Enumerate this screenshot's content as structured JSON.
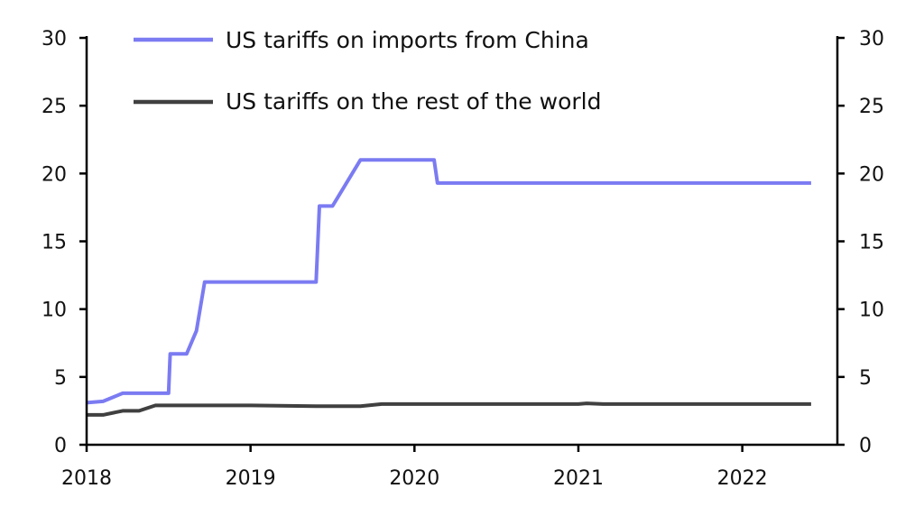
{
  "chart_data": {
    "type": "line",
    "title": "",
    "xlabel": "",
    "ylabel": "",
    "ylim": [
      0,
      30
    ],
    "y2lim": [
      0,
      30
    ],
    "y_ticks": [
      "0",
      "5",
      "10",
      "15",
      "20",
      "25",
      "30"
    ],
    "x_ticks": [
      "2018",
      "2019",
      "2020",
      "2021",
      "2022"
    ],
    "x_tick_values": [
      2018,
      2019,
      2020,
      2021,
      2022
    ],
    "grid": false,
    "legend_position": "top-left",
    "series": [
      {
        "name": "US tariffs on imports from China",
        "color": "#7b7bf2",
        "points": [
          [
            2018.0,
            3.1
          ],
          [
            2018.1,
            3.2
          ],
          [
            2018.22,
            3.8
          ],
          [
            2018.5,
            3.8
          ],
          [
            2018.51,
            6.7
          ],
          [
            2018.61,
            6.7
          ],
          [
            2018.67,
            8.4
          ],
          [
            2018.72,
            12.0
          ],
          [
            2019.4,
            12.0
          ],
          [
            2019.42,
            17.6
          ],
          [
            2019.5,
            17.6
          ],
          [
            2019.67,
            21.0
          ],
          [
            2020.12,
            21.0
          ],
          [
            2020.14,
            19.3
          ],
          [
            2022.42,
            19.3
          ]
        ]
      },
      {
        "name": "US tariffs on the rest of the world",
        "color": "#404040",
        "points": [
          [
            2018.0,
            2.2
          ],
          [
            2018.1,
            2.2
          ],
          [
            2018.22,
            2.5
          ],
          [
            2018.32,
            2.5
          ],
          [
            2018.42,
            2.9
          ],
          [
            2019.0,
            2.9
          ],
          [
            2019.4,
            2.85
          ],
          [
            2019.67,
            2.85
          ],
          [
            2019.8,
            3.0
          ],
          [
            2020.12,
            3.0
          ],
          [
            2021.0,
            3.0
          ],
          [
            2021.05,
            3.05
          ],
          [
            2021.15,
            3.0
          ],
          [
            2022.42,
            3.0
          ]
        ]
      }
    ]
  }
}
